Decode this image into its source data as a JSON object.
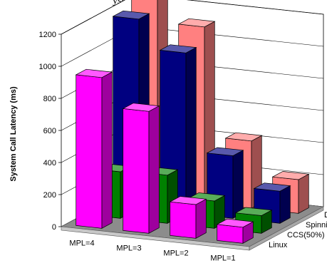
{
  "caption": "ystem.",
  "chart_data": {
    "type": "bar",
    "subtype": "3d-column",
    "title": "",
    "xlabel": "",
    "ylabel": "System Call Latency (ms)",
    "ylim": [
      0,
      1200
    ],
    "yticks": [
      "0",
      "200",
      "400",
      "600",
      "800",
      "1000",
      "1200"
    ],
    "grid": true,
    "categories": [
      "MPL=4",
      "MPL=3",
      "MPL=2",
      "MPL=1"
    ],
    "series": [
      {
        "name": "Linux",
        "color": "#ff00ff",
        "values": [
          940,
          760,
          210,
          100
        ]
      },
      {
        "name": "CCS(50%)",
        "color": "#008000",
        "values": [
          290,
          300,
          170,
          110
        ]
      },
      {
        "name": "Spinning",
        "color": "#000080",
        "values": [
          1180,
          1000,
          390,
          200
        ]
      },
      {
        "name": "DCS",
        "color": "#ff8080",
        "values": [
          1300,
          1100,
          420,
          210
        ]
      }
    ]
  }
}
